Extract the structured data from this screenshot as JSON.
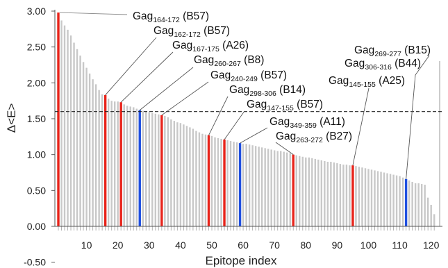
{
  "chart_data": {
    "type": "bar",
    "title": "",
    "xlabel": "Epitope index",
    "ylabel": "Δ<E>",
    "ylim": [
      -0.5,
      3.0
    ],
    "xlim": [
      0,
      121
    ],
    "x_ticks": [
      "10",
      "20",
      "30",
      "40",
      "50",
      "60",
      "70",
      "80",
      "90",
      "100",
      "110",
      "120"
    ],
    "y_ticks": [
      "3.00",
      "2.50",
      "2.00",
      "1.50",
      "1.00",
      "0.50",
      "0.00",
      "-0.50"
    ],
    "threshold": 1.6,
    "colors": {
      "default": "#c8c8c8",
      "red": "#e8231a",
      "blue": "#1f4fe0"
    },
    "values": [
      2.98,
      2.87,
      2.8,
      2.74,
      2.66,
      2.56,
      2.47,
      2.38,
      2.29,
      2.21,
      2.13,
      2.05,
      1.98,
      1.9,
      1.84,
      1.83,
      1.78,
      1.75,
      1.74,
      1.74,
      1.73,
      1.7,
      1.68,
      1.67,
      1.66,
      1.64,
      1.62,
      1.61,
      1.6,
      1.59,
      1.58,
      1.57,
      1.56,
      1.55,
      1.54,
      1.52,
      1.49,
      1.47,
      1.45,
      1.44,
      1.42,
      1.4,
      1.38,
      1.36,
      1.33,
      1.31,
      1.29,
      1.28,
      1.27,
      1.26,
      1.24,
      1.23,
      1.22,
      1.21,
      1.2,
      1.19,
      1.18,
      1.17,
      1.16,
      1.15,
      1.15,
      1.14,
      1.13,
      1.12,
      1.11,
      1.1,
      1.09,
      1.08,
      1.07,
      1.06,
      1.05,
      1.05,
      1.04,
      1.03,
      1.02,
      1.0,
      0.99,
      0.98,
      0.97,
      0.96,
      0.96,
      0.95,
      0.94,
      0.93,
      0.92,
      0.91,
      0.9,
      0.9,
      0.89,
      0.88,
      0.87,
      0.86,
      0.86,
      0.85,
      0.85,
      0.84,
      0.83,
      0.82,
      0.81,
      0.8,
      0.79,
      0.78,
      0.77,
      0.76,
      0.75,
      0.74,
      0.73,
      0.72,
      0.71,
      0.7,
      0.68,
      0.66,
      0.64,
      0.62,
      0.6,
      0.6,
      0.59,
      0.58,
      0.4,
      0.3,
      0.17
    ],
    "highlighted": [
      {
        "index": 1,
        "color": "red",
        "prefix": "Gag",
        "sub": "164-172",
        "suffix": " (B57)"
      },
      {
        "index": 16,
        "color": "red",
        "prefix": "Gag",
        "sub": "162-172",
        "suffix": " (B57)"
      },
      {
        "index": 21,
        "color": "red",
        "prefix": "Gag",
        "sub": "167-175",
        "suffix": " (A26)"
      },
      {
        "index": 27,
        "color": "blue",
        "prefix": "Gag",
        "sub": "260-267",
        "suffix": " (B8)"
      },
      {
        "index": 34,
        "color": "red",
        "prefix": "Gag",
        "sub": "240-249",
        "suffix": " (B57)"
      },
      {
        "index": 49,
        "color": "red",
        "prefix": "Gag",
        "sub": "298-306",
        "suffix": " (B14)"
      },
      {
        "index": 54,
        "color": "red",
        "prefix": "Gag",
        "sub": "147-155",
        "suffix": " (B57)"
      },
      {
        "index": 59,
        "color": "blue",
        "prefix": "Gag",
        "sub": "349-359",
        "suffix": " (A11)"
      },
      {
        "index": 76,
        "color": "red",
        "prefix": "Gag",
        "sub": "263-272",
        "suffix": " (B27)"
      },
      {
        "index": 95,
        "color": "red",
        "prefix": "Gag",
        "sub": "145-155",
        "suffix": " (A25)"
      },
      {
        "index": 112,
        "color": "blue",
        "prefix": "Gag",
        "sub": "306-316",
        "suffix": " (B44)"
      },
      {
        "index": 112,
        "color": "blue",
        "prefix": "Gag",
        "sub": "269-277",
        "suffix": " (B15)"
      }
    ]
  }
}
